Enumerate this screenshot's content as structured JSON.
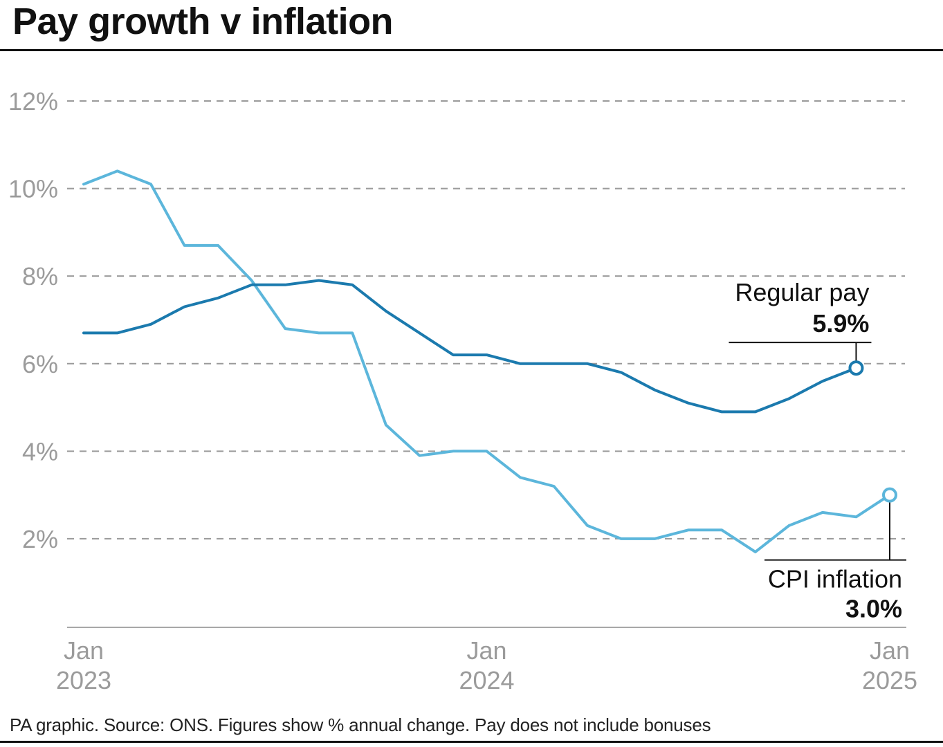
{
  "footer": "PA graphic. Source: ONS. Figures show % annual change. Pay does not include bonuses",
  "colors": {
    "grid": "#9a9a9a",
    "axis": "#a8a8a8",
    "tick_text": "#9b9b9b",
    "annotation_text": "#111111"
  },
  "chart_data": {
    "type": "line",
    "title": "Pay growth v inflation",
    "ylim": [
      0,
      12
    ],
    "y_ticks": [
      2,
      4,
      6,
      8,
      10,
      12
    ],
    "y_tick_labels": [
      "2%",
      "4%",
      "6%",
      "8%",
      "10%",
      "12%"
    ],
    "grid": true,
    "x_ticks": [
      {
        "index": 0,
        "month": "Jan",
        "year": "2023"
      },
      {
        "index": 12,
        "month": "Jan",
        "year": "2024"
      },
      {
        "index": 24,
        "month": "Jan",
        "year": "2025"
      }
    ],
    "series": [
      {
        "name": "CPI inflation",
        "end_label": "3.0%",
        "label_position": "below",
        "color": "#5cb6db",
        "values": [
          10.1,
          10.4,
          10.1,
          8.7,
          8.7,
          7.9,
          6.8,
          6.7,
          6.7,
          4.6,
          3.9,
          4.0,
          4.0,
          3.4,
          3.2,
          2.3,
          2.0,
          2.0,
          2.2,
          2.2,
          1.7,
          2.3,
          2.6,
          2.5,
          3.0
        ]
      },
      {
        "name": "Regular pay",
        "end_label": "5.9%",
        "label_position": "above",
        "color": "#1b7aae",
        "values": [
          6.7,
          6.7,
          6.9,
          7.3,
          7.5,
          7.8,
          7.8,
          7.9,
          7.8,
          7.2,
          6.7,
          6.2,
          6.2,
          6.0,
          6.0,
          6.0,
          5.8,
          5.4,
          5.1,
          4.9,
          4.9,
          5.2,
          5.6,
          5.9
        ]
      }
    ]
  }
}
